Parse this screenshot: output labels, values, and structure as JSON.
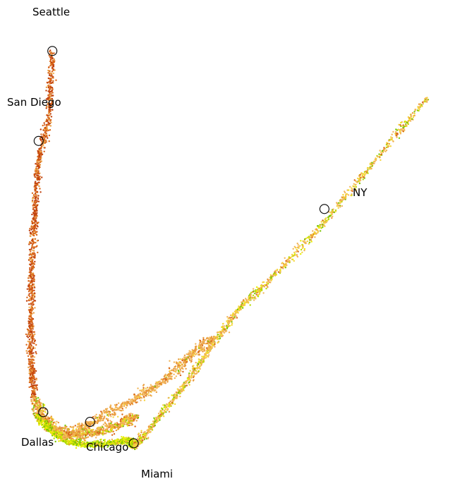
{
  "chart_data": {
    "type": "scatter",
    "title": "",
    "xlabel": "",
    "ylabel": "",
    "axes_visible": false,
    "grid": false,
    "xlim": [
      0,
      100
    ],
    "ylim": [
      0,
      100
    ],
    "point_colors": [
      "#c0410f",
      "#d9661a",
      "#e89a3c",
      "#f2b65a",
      "#f5d43a",
      "#e8f000",
      "#b8dc00",
      "#7cc500"
    ],
    "marker_edge_color": "#000000",
    "branches": [
      {
        "name": "",
        "path_x": [
          11.5,
          10.9,
          8.5,
          7.7,
          7.0,
          6.8,
          6.9,
          7.5
        ],
        "path_y": [
          89.5,
          77.0,
          67.0,
          56.0,
          45.0,
          34.0,
          25.0,
          18.0
        ],
        "color_mix": [
          0.35,
          0.45,
          0.15,
          0.05,
          0,
          0,
          0,
          0
        ]
      },
      {
        "name": "",
        "path_x": [
          7.5,
          9.5,
          12.5,
          16.5,
          21.0,
          26.0,
          30.0
        ],
        "path_y": [
          18.0,
          14.0,
          11.5,
          10.5,
          11.0,
          12.5,
          14.5
        ],
        "color_mix": [
          0,
          0.1,
          0.35,
          0.3,
          0.05,
          0.08,
          0.06,
          0.06
        ]
      },
      {
        "name": "",
        "path_x": [
          8.0,
          11.0,
          15.0,
          20.0,
          25.0,
          28.5,
          29.5
        ],
        "path_y": [
          14.5,
          11.5,
          9.0,
          8.5,
          9.0,
          9.5,
          8.0
        ],
        "color_mix": [
          0,
          0,
          0.05,
          0.05,
          0.1,
          0.3,
          0.25,
          0.25
        ]
      },
      {
        "name": "",
        "path_x": [
          29.5,
          34.0,
          40.0,
          46.0,
          52.0,
          60.0,
          71.0,
          82.0,
          94.0
        ],
        "path_y": [
          8.0,
          13.0,
          20.0,
          28.0,
          36.0,
          43.0,
          54.0,
          66.5,
          80.0
        ],
        "color_mix": [
          0,
          0.05,
          0.08,
          0.35,
          0.3,
          0.05,
          0.07,
          0.1
        ]
      },
      {
        "name": "",
        "path_x": [
          14.0,
          20.0,
          28.0,
          36.0,
          42.0,
          47.0
        ],
        "path_y": [
          10.0,
          13.0,
          17.0,
          21.5,
          27.0,
          30.5
        ],
        "color_mix": [
          0,
          0.1,
          0.35,
          0.45,
          0.08,
          0,
          0,
          0.02
        ]
      }
    ],
    "landmarks": [
      {
        "label": "Seattle",
        "x": 11.5,
        "y": 89.5
      },
      {
        "label": "San Diego",
        "x": 8.5,
        "y": 71.0
      },
      {
        "label": "NY",
        "x": 71.3,
        "y": 57.0
      },
      {
        "label": "Dallas",
        "x": 9.5,
        "y": 15.2
      },
      {
        "label": "Chicago",
        "x": 19.8,
        "y": 13.2
      },
      {
        "label": "Miami",
        "x": 29.4,
        "y": 8.8
      }
    ]
  }
}
